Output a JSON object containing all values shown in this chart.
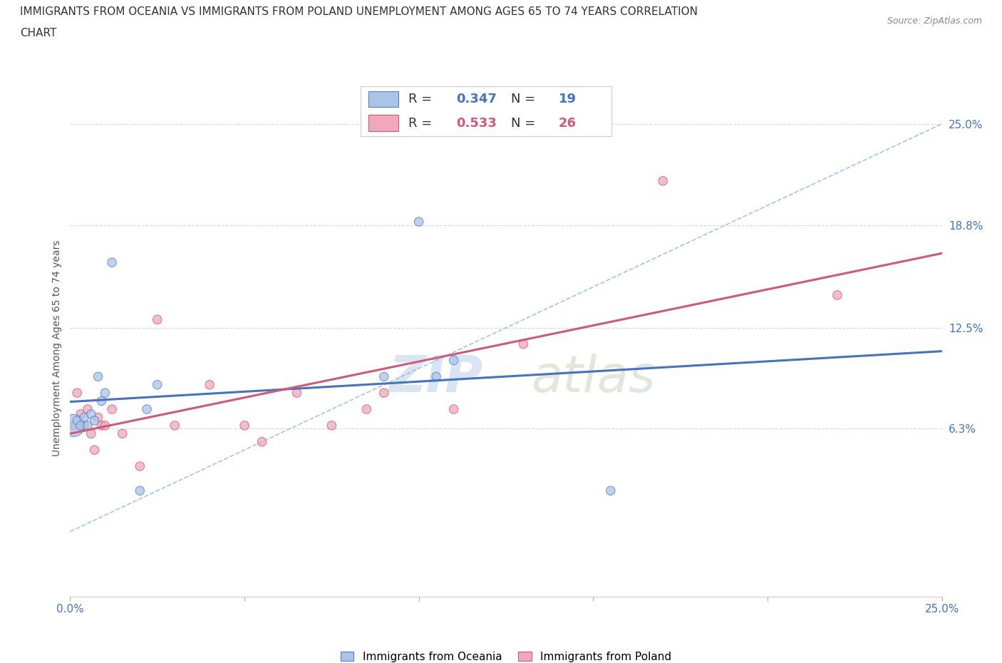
{
  "title_line1": "IMMIGRANTS FROM OCEANIA VS IMMIGRANTS FROM POLAND UNEMPLOYMENT AMONG AGES 65 TO 74 YEARS CORRELATION",
  "title_line2": "CHART",
  "source": "Source: ZipAtlas.com",
  "ylabel": "Unemployment Among Ages 65 to 74 years",
  "xlim": [
    0.0,
    0.25
  ],
  "ylim": [
    -0.04,
    0.265
  ],
  "plot_ylim": [
    0.0,
    0.265
  ],
  "xtick_positions": [
    0.0,
    0.05,
    0.1,
    0.15,
    0.2,
    0.25
  ],
  "ytick_positions_right": [
    0.063,
    0.125,
    0.188,
    0.25
  ],
  "ytick_labels_right": [
    "6.3%",
    "12.5%",
    "18.8%",
    "25.0%"
  ],
  "oceania_fill_color": "#aac4e8",
  "oceania_edge_color": "#5580c8",
  "poland_fill_color": "#f0a8bc",
  "poland_edge_color": "#d05878",
  "blue_line_color": "#4472c4",
  "pink_line_color": "#d05878",
  "dashed_line_color": "#88b8e0",
  "grid_color": "#d8d8d8",
  "R_oceania": 0.347,
  "N_oceania": 19,
  "R_poland": 0.533,
  "N_poland": 26,
  "background_color": "#ffffff",
  "right_label_color": "#4472c4",
  "bottom_label_color": "#4472c4",
  "oceania_x": [
    0.001,
    0.002,
    0.003,
    0.004,
    0.005,
    0.006,
    0.007,
    0.008,
    0.009,
    0.01,
    0.012,
    0.02,
    0.022,
    0.025,
    0.09,
    0.1,
    0.105,
    0.11,
    0.155
  ],
  "oceania_y": [
    0.065,
    0.068,
    0.065,
    0.07,
    0.065,
    0.072,
    0.068,
    0.095,
    0.08,
    0.085,
    0.165,
    0.025,
    0.075,
    0.09,
    0.095,
    0.19,
    0.095,
    0.105,
    0.025
  ],
  "oceania_sizes": [
    500,
    80,
    80,
    80,
    80,
    80,
    80,
    80,
    80,
    80,
    80,
    80,
    80,
    80,
    80,
    80,
    80,
    80,
    80
  ],
  "poland_x": [
    0.001,
    0.002,
    0.003,
    0.004,
    0.005,
    0.006,
    0.007,
    0.008,
    0.009,
    0.01,
    0.012,
    0.015,
    0.02,
    0.025,
    0.03,
    0.04,
    0.05,
    0.055,
    0.065,
    0.075,
    0.085,
    0.09,
    0.11,
    0.13,
    0.17,
    0.22
  ],
  "poland_y": [
    0.065,
    0.085,
    0.072,
    0.065,
    0.075,
    0.06,
    0.05,
    0.07,
    0.065,
    0.065,
    0.075,
    0.06,
    0.04,
    0.13,
    0.065,
    0.09,
    0.065,
    0.055,
    0.085,
    0.065,
    0.075,
    0.085,
    0.075,
    0.115,
    0.215,
    0.145
  ],
  "poland_sizes": [
    80,
    80,
    80,
    80,
    80,
    80,
    80,
    80,
    80,
    80,
    80,
    80,
    80,
    80,
    80,
    80,
    80,
    80,
    80,
    80,
    80,
    80,
    80,
    80,
    80,
    80
  ],
  "legend_oceania_label": "Immigrants from Oceania",
  "legend_poland_label": "Immigrants from Poland",
  "watermark_zip_color": "#c0d4ea",
  "watermark_atlas_color": "#c8d0b8"
}
